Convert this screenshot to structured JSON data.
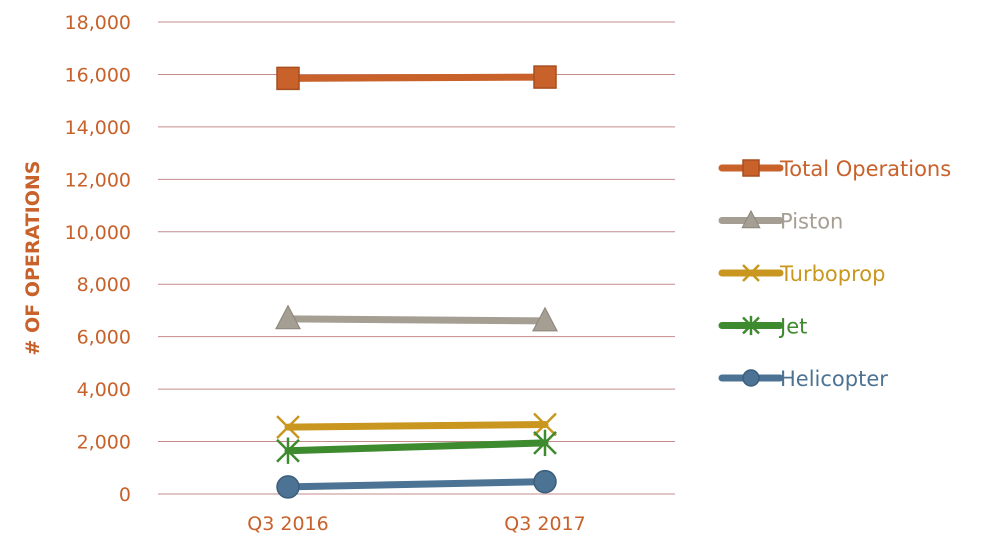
{
  "chart_data": {
    "type": "line",
    "categories": [
      "Q3 2016",
      "Q3 2017"
    ],
    "series": [
      {
        "name": "Total Operations",
        "values": [
          15850,
          15900
        ],
        "color": "#C8612A",
        "marker": "square"
      },
      {
        "name": "Piston",
        "values": [
          6680,
          6600
        ],
        "color": "#A59E92",
        "marker": "triangle"
      },
      {
        "name": "Turboprop",
        "values": [
          2550,
          2650
        ],
        "color": "#C9971F",
        "marker": "x"
      },
      {
        "name": "Jet",
        "values": [
          1650,
          1950
        ],
        "color": "#3E8A2F",
        "marker": "star"
      },
      {
        "name": "Helicopter",
        "values": [
          270,
          470
        ],
        "color": "#4C7394",
        "marker": "circle"
      }
    ],
    "ylabel": "# OF OPERATIONS",
    "xlabel": "",
    "ylim": [
      0,
      18000
    ],
    "yticks": [
      "0",
      "2,000",
      "4,000",
      "6,000",
      "8,000",
      "10,000",
      "12,000",
      "14,000",
      "16,000",
      "18,000"
    ],
    "grid": "horizontal",
    "legend": "right",
    "colors": {
      "gridline": "#C48B8B",
      "ticklabel": "#C8612A",
      "axistitle": "#C8612A"
    }
  }
}
